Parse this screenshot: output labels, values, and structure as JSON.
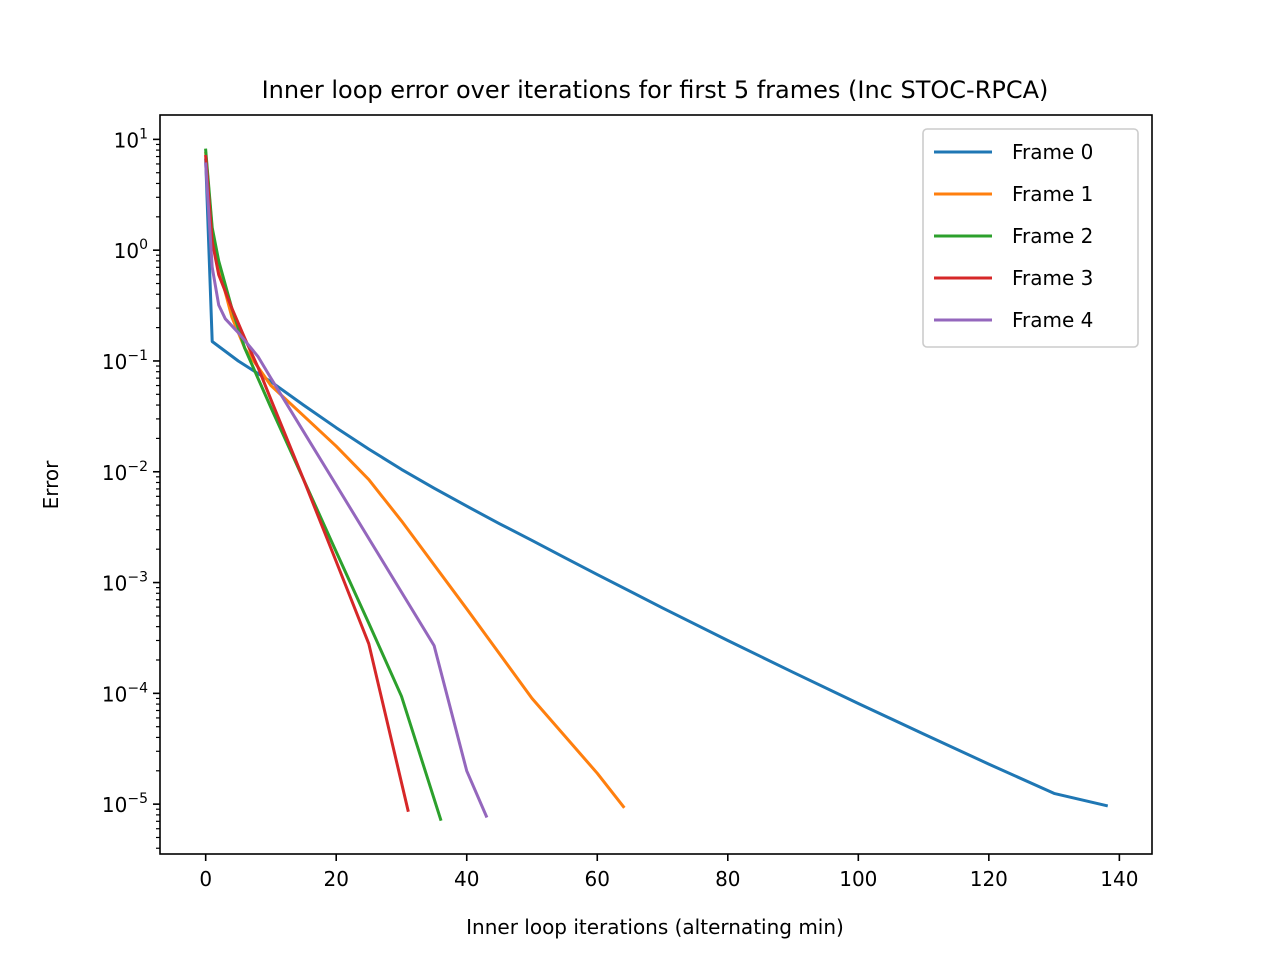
{
  "chart_data": {
    "type": "line",
    "title": "Inner loop error over iterations for first 5 frames (Inc STOC-RPCA)",
    "xlabel": "Inner loop iterations (alternating min)",
    "ylabel": "Error",
    "yscale": "log",
    "xlim": [
      -7,
      145
    ],
    "ylim_exp": [
      -5.45,
      1.22
    ],
    "xticks": [
      0,
      20,
      40,
      60,
      80,
      100,
      120,
      140
    ],
    "xtick_labels": [
      "0",
      "20",
      "40",
      "60",
      "80",
      "100",
      "120",
      "140"
    ],
    "yticks_exp": [
      1,
      0,
      -1,
      -2,
      -3,
      -4,
      -5
    ],
    "ytick_base": "10",
    "ytick_exps": [
      "1",
      "0",
      "−1",
      "−2",
      "−3",
      "−4",
      "−5"
    ],
    "grid": false,
    "legend_position": "top-right",
    "series": [
      {
        "name": "Frame 0",
        "color": "#1f77b4",
        "x": [
          0,
          1,
          5,
          10,
          15,
          20,
          25,
          30,
          35,
          40,
          45,
          50,
          55,
          60,
          70,
          80,
          90,
          100,
          110,
          120,
          130,
          138
        ],
        "y": [
          6.5,
          0.15,
          0.1,
          0.065,
          0.04,
          0.025,
          0.016,
          0.0105,
          0.0071,
          0.0049,
          0.0034,
          0.0024,
          0.00168,
          0.00118,
          0.00059,
          0.0003,
          0.000155,
          8.1e-05,
          4.3e-05,
          2.3e-05,
          1.25e-05,
          9.7e-06
        ]
      },
      {
        "name": "Frame 1",
        "color": "#ff7f0e",
        "x": [
          0,
          1,
          2,
          4,
          6,
          10,
          15,
          20,
          25,
          30,
          40,
          50,
          60,
          64
        ],
        "y": [
          7.5,
          1.5,
          0.7,
          0.25,
          0.13,
          0.06,
          0.032,
          0.017,
          0.0085,
          0.0036,
          0.00058,
          9e-05,
          1.9e-05,
          9.5e-06
        ]
      },
      {
        "name": "Frame 2",
        "color": "#2ca02c",
        "x": [
          0,
          1,
          2,
          4,
          6,
          8,
          10,
          15,
          20,
          25,
          30,
          36
        ],
        "y": [
          8.0,
          1.6,
          0.8,
          0.3,
          0.13,
          0.07,
          0.038,
          0.0085,
          0.0019,
          0.00043,
          9.4e-05,
          7.3e-06
        ]
      },
      {
        "name": "Frame 3",
        "color": "#d62728",
        "x": [
          0,
          1,
          2,
          4,
          6,
          8,
          10,
          15,
          20,
          25,
          31
        ],
        "y": [
          7.0,
          1.2,
          0.6,
          0.3,
          0.16,
          0.088,
          0.045,
          0.0085,
          0.00155,
          0.00028,
          8.8e-06
        ]
      },
      {
        "name": "Frame 4",
        "color": "#9467bd",
        "x": [
          0,
          1,
          2,
          3,
          5,
          8,
          10,
          15,
          20,
          25,
          30,
          35,
          40,
          43
        ],
        "y": [
          6.0,
          0.7,
          0.32,
          0.24,
          0.18,
          0.11,
          0.07,
          0.023,
          0.0076,
          0.0025,
          0.00082,
          0.00027,
          2e-05,
          7.8e-06
        ]
      }
    ]
  }
}
